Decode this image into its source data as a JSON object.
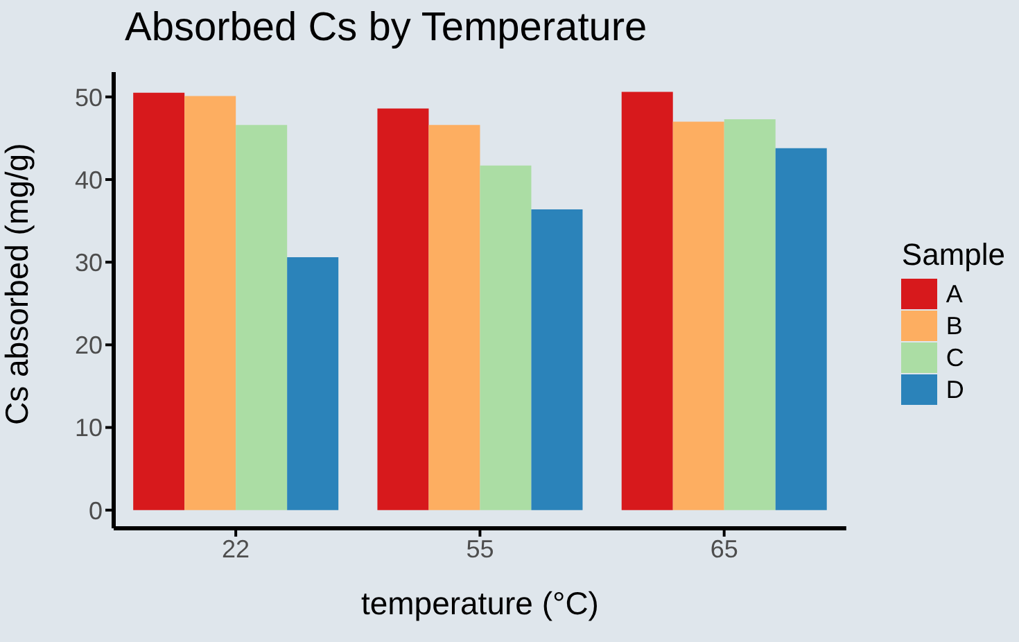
{
  "chart_data": {
    "type": "bar",
    "title": "Absorbed Cs by Temperature",
    "xlabel": "temperature (°C)",
    "ylabel": "Cs absorbed (mg/g)",
    "legend_title": "Sample",
    "categories": [
      "22",
      "55",
      "65"
    ],
    "series": [
      {
        "name": "A",
        "color": "#d7191c",
        "values": [
          50.5,
          48.6,
          50.6
        ]
      },
      {
        "name": "B",
        "color": "#fdae61",
        "values": [
          50.1,
          46.6,
          47.0
        ]
      },
      {
        "name": "C",
        "color": "#abdda4",
        "values": [
          46.6,
          41.7,
          47.3
        ]
      },
      {
        "name": "D",
        "color": "#2b83ba",
        "values": [
          30.6,
          36.4,
          43.8
        ]
      }
    ],
    "ylim": [
      -2.2,
      53
    ],
    "yticks": [
      0,
      10,
      20,
      30,
      40,
      50
    ],
    "grid": false,
    "legend": "right"
  }
}
